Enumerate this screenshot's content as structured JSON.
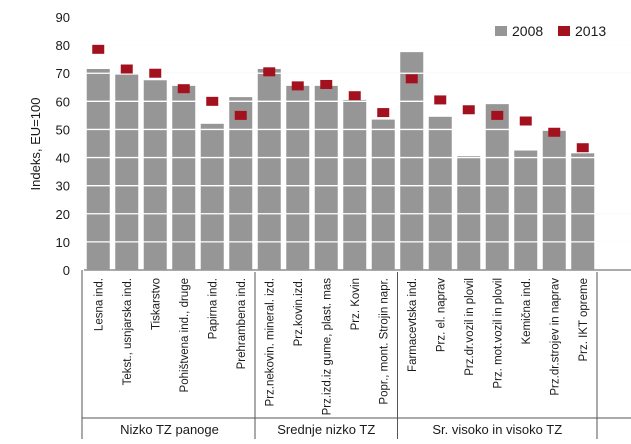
{
  "chart_data": {
    "type": "bar",
    "ylabel": "Indeks, EU=100",
    "ylim": [
      0,
      90
    ],
    "yticks": [
      0,
      10,
      20,
      30,
      40,
      50,
      60,
      70,
      80,
      90
    ],
    "grid": true,
    "legend_position": "top-right",
    "colors": {
      "bar": "#969696",
      "marker": "#a3111f",
      "grid": "#ffffff"
    },
    "categories": [
      "Lesna ind.",
      "Tekst., usnjarska ind.",
      "Tiskarstvo",
      "Pohištvena ind., druge",
      "Papirna ind.",
      "Prehrambena ind.",
      "Prz.nekovin. mineral. izd.",
      "Prz.kovin.izd.",
      "Prz.izd.iz gume, plast. mas",
      "Prz. Kovin",
      "Popr., mont. Strojin napr.",
      "Farmacevtska ind.",
      "Prz. el. naprav",
      "Prz.dr.vozil in plovil",
      "Prz. mot.vozil in plovil",
      "Kemična ind.",
      "Prz.dr.strojev in naprav",
      "Prz. IKT opreme"
    ],
    "series": [
      {
        "name": "2008",
        "style": "bar",
        "values": [
          71.5,
          69.5,
          67.5,
          65.5,
          52,
          61.5,
          71.5,
          65.5,
          65.5,
          60.5,
          53.5,
          77.5,
          54.5,
          40.5,
          59,
          42.5,
          49.5,
          41.5
        ]
      },
      {
        "name": "2013",
        "style": "marker",
        "values": [
          78.5,
          71.5,
          70,
          64.5,
          60,
          55,
          70.5,
          65.5,
          66,
          62,
          56,
          68,
          60.5,
          57,
          55,
          53,
          49,
          43.5
        ]
      }
    ],
    "groups": [
      {
        "label": "Nizko TZ panoge",
        "from": 0,
        "to": 5
      },
      {
        "label": "Srednje nizko TZ",
        "from": 6,
        "to": 10
      },
      {
        "label": "Sr. visoko in visoko TZ",
        "from": 11,
        "to": 17
      }
    ]
  }
}
